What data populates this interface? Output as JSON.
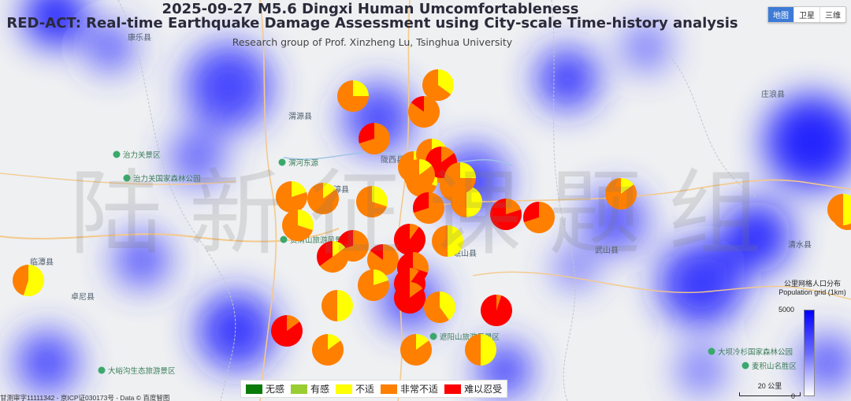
{
  "header": {
    "title": "2025-09-27 M5.6 Dingxi Human Umcomfortableness",
    "subtitle": "RED-ACT: Real-time Earthquake Damage Assessment using City-scale Time-history analysis",
    "credit": "Research group of Prof. Xinzheng Lu, Tsinghua University"
  },
  "watermark": "陆新征课题组",
  "map_types": [
    "地图",
    "卫星",
    "三维"
  ],
  "map_types_active": "地图",
  "place_labels": [
    "漳县",
    "渭源县",
    "临潭县",
    "卓尼县",
    "清水县",
    "庄浪县",
    "陇西县",
    "岷山县",
    "康乐县",
    "武山县"
  ],
  "park_labels": [
    "治力关景区",
    "治力关国家森林公园",
    "渭河东源",
    "贵清山旅游风景区",
    "遮阳山旅游风景区",
    "大峪沟生态旅游景区",
    "大坝冷杉国家森林公园",
    "麦积山名胜区"
  ],
  "legend": {
    "items": [
      {
        "label": "无感",
        "color": "#0a7a0a"
      },
      {
        "label": "有感",
        "color": "#9acd32"
      },
      {
        "label": "不适",
        "color": "#ffff00"
      },
      {
        "label": "非常不适",
        "color": "#ff7f00"
      },
      {
        "label": "难以忍受",
        "color": "#ff0000"
      }
    ]
  },
  "population_legend": {
    "title_cn": "公里网格人口分布",
    "title_en": "Population grid (1km)",
    "max": "5000",
    "min": "0"
  },
  "scale_bar": "20 公里",
  "copyright": "甘测审字11111342 - 京ICP证030173号 - Data © 百度智图",
  "colors": {
    "none": "#0a7a0a",
    "felt": "#9acd32",
    "uncomfortable": "#ffff00",
    "very": "#ff7f00",
    "unbearable": "#ff0000",
    "population": "#0000ff"
  },
  "sites": [
    {
      "id": 1,
      "shares": [
        0,
        0,
        0.25,
        0.75,
        0
      ]
    },
    {
      "id": 2,
      "shares": [
        0,
        0,
        0.35,
        0.65,
        0
      ]
    },
    {
      "id": 3,
      "shares": [
        0,
        0,
        0,
        0.85,
        0.15
      ]
    },
    {
      "id": 4,
      "shares": [
        0,
        0,
        0,
        0.7,
        0.3
      ]
    },
    {
      "id": 5,
      "shares": [
        0,
        0,
        0.2,
        0.8,
        0
      ]
    },
    {
      "id": 6,
      "shares": [
        0,
        0,
        0.15,
        0.85,
        0
      ]
    },
    {
      "id": 7,
      "shares": [
        0,
        0,
        0.3,
        0.7,
        0
      ]
    },
    {
      "id": 8,
      "shares": [
        0,
        0,
        0.25,
        0.75,
        0
      ]
    },
    {
      "id": 9,
      "shares": [
        0,
        0,
        0.2,
        0.8,
        0
      ]
    },
    {
      "id": 10,
      "shares": [
        0,
        0,
        0.3,
        0.7,
        0
      ]
    },
    {
      "id": 11,
      "shares": [
        0,
        0,
        0.3,
        0.7,
        0
      ]
    },
    {
      "id": 12,
      "shares": [
        0,
        0,
        0.5,
        0.5,
        0
      ]
    },
    {
      "id": 13,
      "shares": [
        0,
        0,
        0,
        0.7,
        0.3
      ]
    },
    {
      "id": 14,
      "shares": [
        0,
        0,
        0.3,
        0.7,
        0
      ]
    },
    {
      "id": 15,
      "shares": [
        0,
        0,
        0,
        0.2,
        0.8
      ]
    },
    {
      "id": 16,
      "shares": [
        0,
        0,
        0,
        0.7,
        0.3
      ]
    },
    {
      "id": 17,
      "shares": [
        0,
        0,
        0,
        0.7,
        0.3
      ]
    },
    {
      "id": 18,
      "shares": [
        0,
        0,
        0.15,
        0.5,
        0.35
      ]
    },
    {
      "id": 19,
      "shares": [
        0,
        0,
        0.5,
        0.5,
        0
      ]
    },
    {
      "id": 20,
      "shares": [
        0,
        0,
        0,
        0.1,
        0.9
      ]
    },
    {
      "id": 21,
      "shares": [
        0,
        0,
        0,
        0.85,
        0.15
      ]
    },
    {
      "id": 22,
      "shares": [
        0,
        0,
        0,
        0.3,
        0.7
      ]
    },
    {
      "id": 23,
      "shares": [
        0,
        0,
        0.2,
        0.8,
        0
      ]
    },
    {
      "id": 24,
      "shares": [
        0,
        0,
        0,
        0.1,
        0.9
      ]
    },
    {
      "id": 25,
      "shares": [
        0,
        0,
        0,
        0.15,
        0.85
      ]
    },
    {
      "id": 26,
      "shares": [
        0,
        0,
        0.5,
        0.5,
        0
      ]
    },
    {
      "id": 27,
      "shares": [
        0,
        0,
        0,
        0.05,
        0.95
      ]
    },
    {
      "id": 28,
      "shares": [
        0,
        0,
        0.4,
        0.6,
        0
      ]
    },
    {
      "id": 29,
      "shares": [
        0,
        0,
        0,
        0.15,
        0.85
      ]
    },
    {
      "id": 30,
      "shares": [
        0,
        0,
        0.15,
        0.85,
        0
      ]
    },
    {
      "id": 31,
      "shares": [
        0,
        0,
        0.15,
        0.85,
        0
      ]
    },
    {
      "id": 32,
      "shares": [
        0,
        0,
        0.5,
        0.5,
        0
      ]
    },
    {
      "id": 33,
      "shares": [
        0,
        0,
        0.15,
        0.85,
        0
      ]
    },
    {
      "id": 34,
      "shares": [
        0,
        0,
        0.2,
        0.8,
        0
      ]
    },
    {
      "id": 35,
      "shares": [
        0,
        0,
        0.55,
        0.45,
        0
      ]
    },
    {
      "id": 36,
      "shares": [
        0,
        0,
        0.5,
        0.5,
        0
      ]
    },
    {
      "id": 37,
      "shares": [
        0,
        0,
        0,
        0.15,
        0.85
      ]
    },
    {
      "id": 38,
      "shares": [
        0,
        0,
        0.15,
        0.85,
        0
      ]
    },
    {
      "id": 39,
      "shares": [
        0,
        0,
        0.25,
        0.75,
        0
      ]
    },
    {
      "id": 40,
      "shares": [
        0,
        0,
        0.5,
        0.5,
        0
      ]
    }
  ]
}
